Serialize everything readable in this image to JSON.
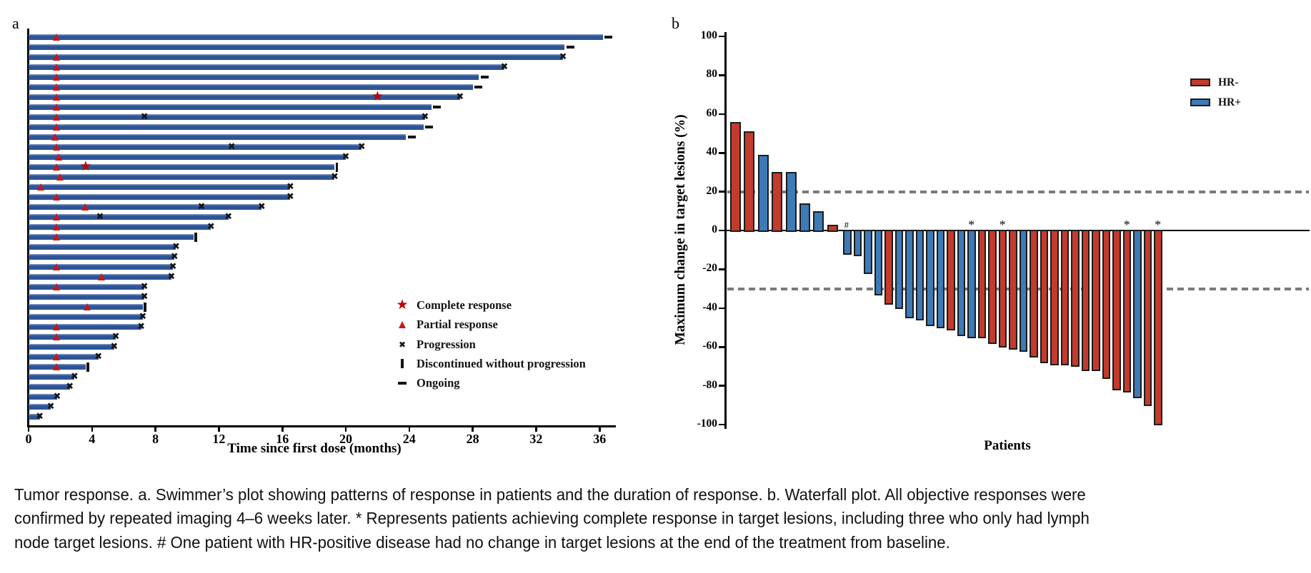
{
  "caption": {
    "lines": [
      "Tumor response. a. Swimmer’s plot showing patterns of response in patients and the duration of response. b. Waterfall plot. All objective responses were",
      "confirmed by repeated imaging 4–6 weeks later. * Represents patients achieving complete response in target lesions, including three who only had lymph",
      "node target lesions. # One patient with HR-positive disease had no change in target lesions at the end of the treatment from baseline."
    ]
  },
  "chart_data": [
    {
      "type": "bar",
      "subtype": "swimmer-horizontal",
      "panel_label": "a",
      "xlabel": "Time since first dose (months)",
      "x_ticks": [
        0,
        4,
        8,
        12,
        16,
        20,
        24,
        28,
        32,
        36
      ],
      "xlim": [
        0,
        37
      ],
      "bar_color": "#2f5496",
      "marker_red": "#cc1616",
      "legend": [
        {
          "marker": "star",
          "label": "Complete response"
        },
        {
          "marker": "triangle",
          "label": "Partial response"
        },
        {
          "marker": "x",
          "label": "Progression"
        },
        {
          "marker": "vbar",
          "label": "Discontinued without progression"
        },
        {
          "marker": "dash",
          "label": "Ongoing"
        }
      ],
      "patients": [
        {
          "months": 36.2,
          "pr": 1.8,
          "end": "ongoing"
        },
        {
          "months": 33.8,
          "end": "ongoing"
        },
        {
          "months": 33.7,
          "pr": 1.8,
          "end": "progression"
        },
        {
          "months": 30.0,
          "pr": 1.8,
          "end": "progression"
        },
        {
          "months": 28.4,
          "pr": 1.8,
          "end": "ongoing"
        },
        {
          "months": 28.0,
          "pr": 1.8,
          "end": "ongoing"
        },
        {
          "months": 27.2,
          "pr": 1.8,
          "cr": 22.0,
          "end": "progression"
        },
        {
          "months": 25.4,
          "pr": 1.8,
          "end": "ongoing"
        },
        {
          "months": 25.0,
          "pr": 1.8,
          "mid_progression": 7.3,
          "end": "progression"
        },
        {
          "months": 24.9,
          "pr": 1.8,
          "end": "ongoing"
        },
        {
          "months": 23.8,
          "pr": 1.7,
          "end": "ongoing"
        },
        {
          "months": 21.0,
          "pr": 1.8,
          "mid_progression": 12.8,
          "end": "progression"
        },
        {
          "months": 20.0,
          "pr": 1.9,
          "end": "progression"
        },
        {
          "months": 19.3,
          "pr": 1.8,
          "cr": 3.6,
          "end": "discontinued"
        },
        {
          "months": 19.3,
          "pr": 2.0,
          "end": "progression"
        },
        {
          "months": 16.5,
          "pr": 0.8,
          "end": "progression"
        },
        {
          "months": 16.5,
          "pr": 1.8,
          "end": "progression"
        },
        {
          "months": 14.7,
          "pr": 3.6,
          "mid_progression": 10.9,
          "end": "progression"
        },
        {
          "months": 12.6,
          "pr": 1.8,
          "mid_progression": 4.5,
          "end": "progression"
        },
        {
          "months": 11.5,
          "pr": 1.8,
          "end": "progression"
        },
        {
          "months": 10.4,
          "pr": 1.8,
          "end": "discontinued"
        },
        {
          "months": 9.3,
          "end": "progression"
        },
        {
          "months": 9.2,
          "end": "progression"
        },
        {
          "months": 9.1,
          "pr": 1.8,
          "end": "progression"
        },
        {
          "months": 9.0,
          "pr": 4.6,
          "end": "progression"
        },
        {
          "months": 7.3,
          "pr": 1.8,
          "end": "progression"
        },
        {
          "months": 7.3,
          "end": "progression"
        },
        {
          "months": 7.2,
          "pr": 3.7,
          "end": "discontinued"
        },
        {
          "months": 7.2,
          "end": "progression"
        },
        {
          "months": 7.1,
          "pr": 1.8,
          "end": "progression"
        },
        {
          "months": 5.5,
          "pr": 1.8,
          "end": "progression"
        },
        {
          "months": 5.4,
          "end": "progression"
        },
        {
          "months": 4.4,
          "pr": 1.8,
          "end": "progression"
        },
        {
          "months": 3.6,
          "pr": 1.8,
          "end": "discontinued"
        },
        {
          "months": 2.9,
          "end": "progression"
        },
        {
          "months": 2.6,
          "end": "progression"
        },
        {
          "months": 1.8,
          "end": "progression"
        },
        {
          "months": 1.4,
          "end": "progression"
        },
        {
          "months": 0.7,
          "end": "progression"
        }
      ]
    },
    {
      "type": "bar",
      "subtype": "waterfall",
      "panel_label": "b",
      "ylabel": "Maximum change in target lesions (%)",
      "xlabel": "Patients",
      "y_ticks": [
        100,
        80,
        60,
        40,
        20,
        0,
        -20,
        -40,
        -60,
        -80,
        -100
      ],
      "ylim": [
        -100,
        100
      ],
      "reference_lines": [
        20,
        -30
      ],
      "legend": [
        {
          "label": "HR-",
          "color": "#c23b2c"
        },
        {
          "label": "HR+",
          "color": "#3d7ab8"
        }
      ],
      "group_colors": {
        "HR-": "#c23b2c",
        "HR+": "#3d7ab8"
      },
      "bars": [
        {
          "value": 56,
          "group": "HR-"
        },
        {
          "value": 51,
          "group": "HR-"
        },
        {
          "value": 39,
          "group": "HR+"
        },
        {
          "value": 30,
          "group": "HR-"
        },
        {
          "value": 30,
          "group": "HR+"
        },
        {
          "value": 14,
          "group": "HR+"
        },
        {
          "value": 10,
          "group": "HR+"
        },
        {
          "value": 3,
          "group": "HR-"
        },
        {
          "value": 0,
          "group": "HR+",
          "annotation": "#"
        },
        {
          "value": -12,
          "group": "HR+"
        },
        {
          "value": -13,
          "group": "HR+"
        },
        {
          "value": -22,
          "group": "HR+"
        },
        {
          "value": -33,
          "group": "HR+"
        },
        {
          "value": -38,
          "group": "HR-"
        },
        {
          "value": -40,
          "group": "HR+"
        },
        {
          "value": -45,
          "group": "HR+"
        },
        {
          "value": -46,
          "group": "HR+"
        },
        {
          "value": -49,
          "group": "HR+"
        },
        {
          "value": -50,
          "group": "HR+"
        },
        {
          "value": -51,
          "group": "HR-"
        },
        {
          "value": -54,
          "group": "HR+"
        },
        {
          "value": -55,
          "group": "HR+",
          "annotation": "*"
        },
        {
          "value": -55,
          "group": "HR-"
        },
        {
          "value": -58,
          "group": "HR-"
        },
        {
          "value": -60,
          "group": "HR-",
          "annotation": "*"
        },
        {
          "value": -61,
          "group": "HR-"
        },
        {
          "value": -62,
          "group": "HR+"
        },
        {
          "value": -65,
          "group": "HR-"
        },
        {
          "value": -68,
          "group": "HR-"
        },
        {
          "value": -69,
          "group": "HR-"
        },
        {
          "value": -69,
          "group": "HR-"
        },
        {
          "value": -70,
          "group": "HR-"
        },
        {
          "value": -72,
          "group": "HR-"
        },
        {
          "value": -72,
          "group": "HR-"
        },
        {
          "value": -76,
          "group": "HR-"
        },
        {
          "value": -82,
          "group": "HR-"
        },
        {
          "value": -83,
          "group": "HR-",
          "annotation": "*"
        },
        {
          "value": -86,
          "group": "HR+"
        },
        {
          "value": -90,
          "group": "HR-"
        },
        {
          "value": -100,
          "group": "HR-",
          "annotation": "*"
        }
      ]
    }
  ]
}
